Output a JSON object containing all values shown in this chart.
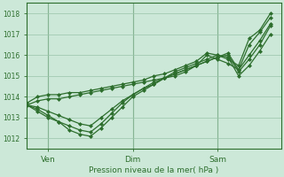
{
  "xlabel": "Pression niveau de la mer( hPa )",
  "bg_color": "#cce8d8",
  "grid_color": "#99c4aa",
  "line_color": "#2d6e2d",
  "marker": "D",
  "markersize": 2.0,
  "linewidth": 0.9,
  "ylim": [
    1011.5,
    1018.5
  ],
  "yticks": [
    1012,
    1013,
    1014,
    1015,
    1016,
    1017,
    1018
  ],
  "xtick_labels": [
    "Ven",
    "Dim",
    "Sam"
  ],
  "xtick_positions": [
    2,
    10,
    18
  ],
  "vline_positions": [
    2,
    10,
    18
  ],
  "xlim": [
    0,
    24
  ],
  "series": [
    [
      1013.6,
      1013.8,
      1013.9,
      1013.9,
      1014.0,
      1014.1,
      1014.2,
      1014.3,
      1014.4,
      1014.5,
      1014.6,
      1014.7,
      1014.8,
      1014.9,
      1015.0,
      1015.2,
      1015.5,
      1016.0,
      1015.8,
      1015.6,
      1015.3,
      1016.5,
      1017.1,
      1017.8
    ],
    [
      1013.6,
      1013.4,
      1013.1,
      1012.8,
      1012.4,
      1012.2,
      1012.1,
      1012.5,
      1013.0,
      1013.5,
      1014.0,
      1014.3,
      1014.6,
      1014.9,
      1015.1,
      1015.3,
      1015.5,
      1015.7,
      1015.9,
      1016.0,
      1015.2,
      1015.8,
      1016.5,
      1017.4
    ],
    [
      1013.6,
      1013.3,
      1013.0,
      1012.8,
      1012.6,
      1012.4,
      1012.3,
      1012.7,
      1013.2,
      1013.7,
      1014.1,
      1014.4,
      1014.6,
      1014.9,
      1015.1,
      1015.3,
      1015.5,
      1015.7,
      1015.9,
      1016.1,
      1015.3,
      1016.0,
      1016.7,
      1017.5
    ],
    [
      1013.6,
      1013.5,
      1013.3,
      1013.1,
      1012.9,
      1012.7,
      1012.6,
      1013.0,
      1013.4,
      1013.8,
      1014.1,
      1014.4,
      1014.7,
      1014.9,
      1015.2,
      1015.4,
      1015.6,
      1015.8,
      1016.0,
      1015.9,
      1015.0,
      1015.5,
      1016.2,
      1017.0
    ],
    [
      1013.7,
      1014.0,
      1014.1,
      1014.1,
      1014.2,
      1014.2,
      1014.3,
      1014.4,
      1014.5,
      1014.6,
      1014.7,
      1014.8,
      1015.0,
      1015.1,
      1015.3,
      1015.5,
      1015.7,
      1016.1,
      1016.0,
      1015.8,
      1015.5,
      1016.8,
      1017.2,
      1018.0
    ]
  ]
}
